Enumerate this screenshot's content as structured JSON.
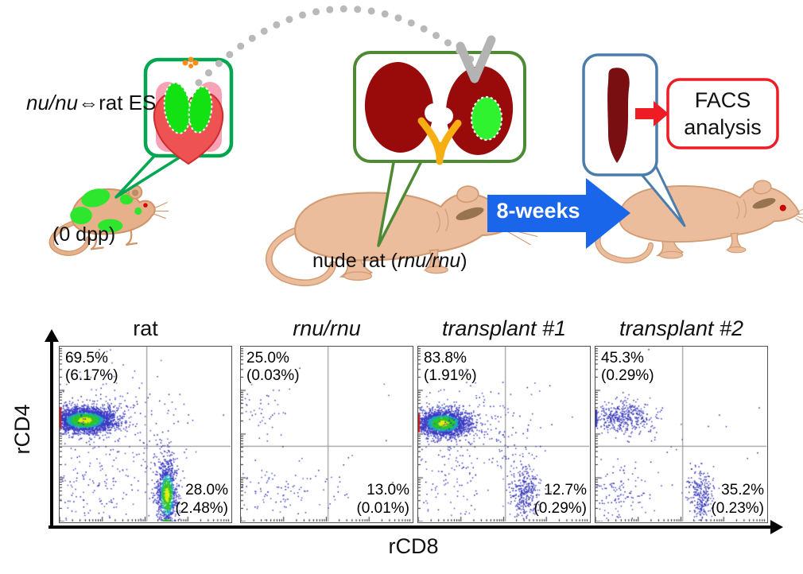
{
  "schematic": {
    "chimera_label": {
      "italic_part": "nu/nu",
      "regular_part": "⇔rat ES"
    },
    "dpp_label": "(0 dpp)",
    "nude_rat_label": {
      "prefix": "nude rat (",
      "italic_part": "rnu/rnu",
      "suffix": ")"
    },
    "weeks_arrow_label": "8-weeks",
    "facs_box": {
      "line1": "FACS",
      "line2": "analysis"
    },
    "colors": {
      "thymus_box_border": "#00a650",
      "kidney_box_border": "#4e8a34",
      "spleen_box_border": "#4b7dab",
      "facs_box_border": "#ee1c24",
      "blue_arrow": "#1a66ea",
      "red_arrow": "#ee1c24",
      "kidney": "#990a0a",
      "spleen": "#7a0f12",
      "graft_green": "#2ef32e",
      "thymus_green": "#12e212",
      "heart_red": "#ee5252",
      "lung_pink": "#f9a2b6",
      "vessel_yellow": "#f6ae12",
      "rat_body": "#ecbd9d",
      "mouse_patch_green": "#2ee62e",
      "arc_gray": "#b9b9b9"
    }
  },
  "chart_data": {
    "type": "scatter",
    "subtype": "flow-cytometry-quadrant-density-plots",
    "xlabel": "rCD8",
    "ylabel": "rCD4",
    "axes": "4-decade log axes with tick marks only, no numeric tick labels, arrowheads on axis ends",
    "quadrant_split": {
      "x_frac": 0.51,
      "y_frac": 0.57
    },
    "point_colors": {
      "base": "#3a3ac4",
      "mid": "#18a8c0",
      "hot": "#2cc42c",
      "core": "#e0ee00"
    },
    "plots": [
      {
        "title": "rat",
        "title_italic": false,
        "seed": 11,
        "quadrants": {
          "upper_left": {
            "pct": "69.5%",
            "sub": "(6.17%)"
          },
          "lower_right": {
            "pct": "28.0%",
            "sub": "(2.48%)"
          }
        },
        "clusters": [
          {
            "cx": 0.145,
            "cy": 0.418,
            "sx": 0.085,
            "sy": 0.035,
            "n": 3000,
            "heat": 1
          },
          {
            "cx": 0.625,
            "cy": 0.845,
            "sx": 0.03,
            "sy": 0.095,
            "n": 1100,
            "heat": 0.85
          },
          {
            "cx": 0.3,
            "cy": 0.4,
            "sx": 0.22,
            "sy": 0.14,
            "n": 220,
            "heat": 0
          },
          {
            "cx": 0.18,
            "cy": 0.8,
            "sx": 0.16,
            "sy": 0.1,
            "n": 150,
            "heat": 0
          },
          {
            "cx": 0.6,
            "cy": 0.62,
            "sx": 0.06,
            "sy": 0.08,
            "n": 60,
            "heat": 0
          }
        ],
        "edge_marks": [
          {
            "side": "left",
            "from": 0.345,
            "to": 0.47,
            "color": "#cc2020"
          },
          {
            "side": "bottom",
            "from": 0.605,
            "to": 0.648,
            "color": "#28b428"
          }
        ]
      },
      {
        "title": "rnu/rnu",
        "title_italic": true,
        "seed": 22,
        "quadrants": {
          "upper_left": {
            "pct": "25.0%",
            "sub": "(0.03%)"
          },
          "lower_right": {
            "pct": "13.0%",
            "sub": "(0.01%)"
          }
        },
        "clusters": [
          {
            "cx": 0.115,
            "cy": 0.385,
            "sx": 0.075,
            "sy": 0.075,
            "n": 45,
            "heat": 0
          },
          {
            "cx": 0.2,
            "cy": 0.82,
            "sx": 0.13,
            "sy": 0.085,
            "n": 90,
            "heat": 0
          },
          {
            "cx": 0.55,
            "cy": 0.82,
            "sx": 0.045,
            "sy": 0.06,
            "n": 14,
            "heat": 0
          },
          {
            "cx": 0.5,
            "cy": 0.45,
            "sx": 0.3,
            "sy": 0.25,
            "n": 12,
            "heat": 0
          }
        ],
        "edge_marks": []
      },
      {
        "title": "transplant #1",
        "title_italic": true,
        "seed": 33,
        "quadrants": {
          "upper_left": {
            "pct": "83.8%",
            "sub": "(1.91%)"
          },
          "lower_right": {
            "pct": "12.7%",
            "sub": "(0.29%)"
          }
        },
        "clusters": [
          {
            "cx": 0.145,
            "cy": 0.435,
            "sx": 0.075,
            "sy": 0.038,
            "n": 2300,
            "heat": 0.8
          },
          {
            "cx": 0.625,
            "cy": 0.83,
            "sx": 0.045,
            "sy": 0.075,
            "n": 330,
            "heat": 0
          },
          {
            "cx": 0.32,
            "cy": 0.45,
            "sx": 0.2,
            "sy": 0.12,
            "n": 200,
            "heat": 0
          },
          {
            "cx": 0.15,
            "cy": 0.8,
            "sx": 0.13,
            "sy": 0.1,
            "n": 90,
            "heat": 0
          },
          {
            "cx": 0.52,
            "cy": 0.6,
            "sx": 0.08,
            "sy": 0.1,
            "n": 40,
            "heat": 0
          }
        ],
        "edge_marks": [
          {
            "side": "left",
            "from": 0.385,
            "to": 0.49,
            "color": "#cc2020"
          }
        ]
      },
      {
        "title": "transplant #2",
        "title_italic": true,
        "seed": 44,
        "quadrants": {
          "upper_left": {
            "pct": "45.3%",
            "sub": "(0.29%)"
          },
          "lower_right": {
            "pct": "35.2%",
            "sub": "(0.23%)"
          }
        },
        "clusters": [
          {
            "cx": 0.15,
            "cy": 0.4,
            "sx": 0.09,
            "sy": 0.045,
            "n": 420,
            "heat": 0
          },
          {
            "cx": 0.61,
            "cy": 0.845,
            "sx": 0.038,
            "sy": 0.075,
            "n": 260,
            "heat": 0
          },
          {
            "cx": 0.13,
            "cy": 0.85,
            "sx": 0.11,
            "sy": 0.09,
            "n": 130,
            "heat": 0
          },
          {
            "cx": 0.35,
            "cy": 0.55,
            "sx": 0.25,
            "sy": 0.2,
            "n": 25,
            "heat": 0
          }
        ],
        "edge_marks": [
          {
            "side": "left",
            "from": 0.36,
            "to": 0.46,
            "color": "#3a3ac4"
          }
        ]
      }
    ]
  }
}
